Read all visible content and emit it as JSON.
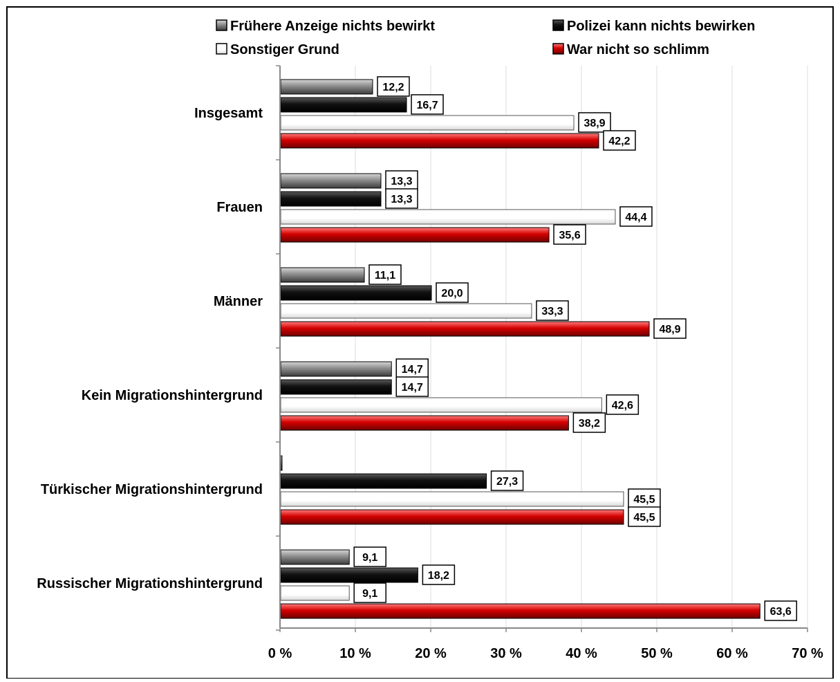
{
  "chart_data": {
    "type": "bar",
    "orientation": "horizontal",
    "categories": [
      "Insgesamt",
      "Frauen",
      "Männer",
      "Kein Migrationshintergrund",
      "Türkischer Migrationshintergrund",
      "Russischer Migrationshintergrund"
    ],
    "series": [
      {
        "name": "Frühere Anzeige nichts bewirkt",
        "color": "#8c8c8c",
        "values": [
          12.2,
          13.3,
          11.1,
          14.7,
          0,
          9.1
        ],
        "labels": [
          "12,2",
          "13,3",
          "11,1",
          "14,7",
          "",
          "9,1"
        ]
      },
      {
        "name": "Polizei kann nichts bewirken",
        "color": "#111111",
        "values": [
          16.7,
          13.3,
          20.0,
          14.7,
          27.3,
          18.2
        ],
        "labels": [
          "16,7",
          "13,3",
          "20,0",
          "14,7",
          "27,3",
          "18,2"
        ]
      },
      {
        "name": "Sonstiger Grund",
        "color": "#ffffff",
        "values": [
          38.9,
          44.4,
          33.3,
          42.6,
          45.5,
          9.1
        ],
        "labels": [
          "38,9",
          "44,4",
          "33,3",
          "42,6",
          "45,5",
          "9,1"
        ]
      },
      {
        "name": "War nicht so schlimm",
        "color": "#d40000",
        "values": [
          42.2,
          35.6,
          48.9,
          38.2,
          45.5,
          63.6
        ],
        "labels": [
          "42,2",
          "35,6",
          "48,9",
          "38,2",
          "45,5",
          "63,6"
        ]
      }
    ],
    "x_ticks": [
      "0 %",
      "10 %",
      "20 %",
      "30 %",
      "40 %",
      "50 %",
      "60 %",
      "70 %"
    ],
    "xlim": [
      0,
      70
    ],
    "title": "",
    "xlabel": "",
    "ylabel": "",
    "grid": true,
    "legend_position": "top"
  }
}
